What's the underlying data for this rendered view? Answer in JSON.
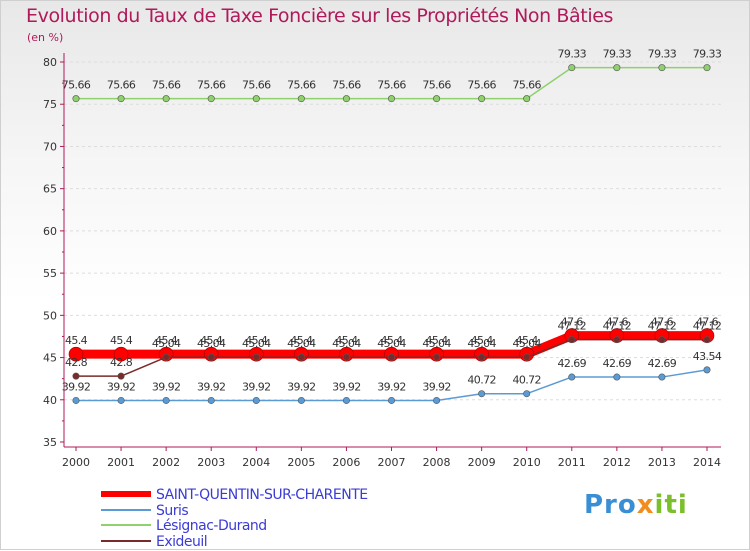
{
  "chart_data": {
    "type": "line",
    "title": "Evolution du Taux de Taxe Foncière sur les Propriétés Non Bâties",
    "unit_label": "(en %)",
    "x": [
      "2000",
      "2001",
      "2002",
      "2003",
      "2004",
      "2005",
      "2006",
      "2007",
      "2008",
      "2009",
      "2010",
      "2011",
      "2012",
      "2013",
      "2014"
    ],
    "ylim": [
      35,
      80
    ],
    "yticks": [
      "35",
      "40",
      "45",
      "50",
      "55",
      "60",
      "65",
      "70",
      "75",
      "80"
    ],
    "series": [
      {
        "name": "SAINT-QUENTIN-SUR-CHARENTE",
        "color": "#ff0000",
        "values": [
          45.4,
          45.4,
          45.4,
          45.4,
          45.4,
          45.4,
          45.4,
          45.4,
          45.4,
          45.4,
          45.4,
          47.6,
          47.6,
          47.6,
          47.6
        ],
        "labels": [
          "45.4",
          "45.4",
          "45.4",
          "45.4",
          "45.4",
          "45.4",
          "45.4",
          "45.4",
          "45.4",
          "45.4",
          "45.4",
          "47.6",
          "47.6",
          "47.6",
          "47.6"
        ]
      },
      {
        "name": "Suris",
        "color": "#5b9bd5",
        "values": [
          39.92,
          39.92,
          39.92,
          39.92,
          39.92,
          39.92,
          39.92,
          39.92,
          39.92,
          40.72,
          40.72,
          42.69,
          42.69,
          42.69,
          43.54
        ],
        "labels": [
          "39.92",
          "39.92",
          "39.92",
          "39.92",
          "39.92",
          "39.92",
          "39.92",
          "39.92",
          "39.92",
          "40.72",
          "40.72",
          "42.69",
          "42.69",
          "42.69",
          "43.54"
        ]
      },
      {
        "name": "Lésignac-Durand",
        "color": "#8fd16c",
        "values": [
          75.66,
          75.66,
          75.66,
          75.66,
          75.66,
          75.66,
          75.66,
          75.66,
          75.66,
          75.66,
          75.66,
          79.33,
          79.33,
          79.33,
          79.33
        ],
        "labels": [
          "75.66",
          "75.66",
          "75.66",
          "75.66",
          "75.66",
          "75.66",
          "75.66",
          "75.66",
          "75.66",
          "75.66",
          "75.66",
          "79.33",
          "79.33",
          "79.33",
          "79.33"
        ]
      },
      {
        "name": "Exideuil",
        "color": "#7a2a2a",
        "values": [
          42.8,
          42.8,
          45.04,
          45.04,
          45.04,
          45.04,
          45.04,
          45.04,
          45.04,
          45.04,
          45.04,
          47.12,
          47.12,
          47.12,
          47.12
        ],
        "labels": [
          "42.8",
          "42.8",
          "45.04",
          "45.04",
          "45.04",
          "45.04",
          "45.04",
          "45.04",
          "45.04",
          "45.04",
          "45.04",
          "47.12",
          "47.12",
          "47.12",
          "47.12"
        ]
      }
    ]
  },
  "logo": {
    "part1": "Pro",
    "part2": "x",
    "part3": "iti"
  }
}
